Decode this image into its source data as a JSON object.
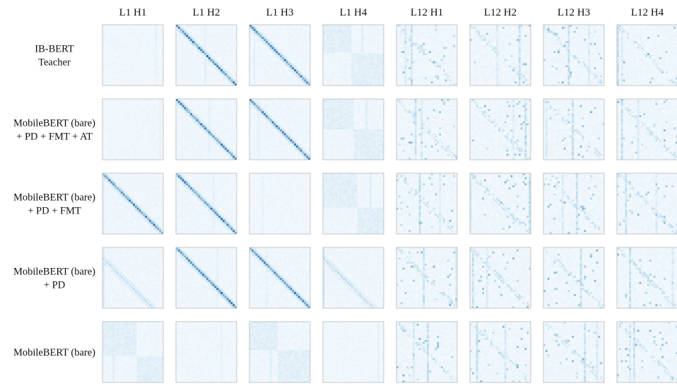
{
  "chart_data": {
    "type": "heatmap",
    "columns": [
      "L1 H1",
      "L1 H2",
      "L1 H3",
      "L1 H4",
      "L12 H1",
      "L12 H2",
      "L12 H3",
      "L12 H4"
    ],
    "rows": [
      {
        "label_lines": [
          "IB-BERT",
          "Teacher"
        ]
      },
      {
        "label_lines": [
          "MobileBERT (bare)",
          "+ PD + FMT + AT"
        ]
      },
      {
        "label_lines": [
          "MobileBERT (bare)",
          "+ PD + FMT"
        ]
      },
      {
        "label_lines": [
          "MobileBERT (bare)",
          "+ PD"
        ]
      },
      {
        "label_lines": [
          "MobileBERT (bare)"
        ]
      }
    ],
    "colormap": {
      "low": "#f7fbff",
      "mid": "#9ecae1",
      "high": "#08519c"
    },
    "frame_color": "#b9b9b9",
    "patterns": [
      [
        "uniform",
        "diag",
        "diag",
        "blocks",
        "sparse",
        "sparse",
        "sparse",
        "sparse"
      ],
      [
        "uniform",
        "diag",
        "diag",
        "blocks",
        "sparse",
        "sparse",
        "sparse",
        "sparse"
      ],
      [
        "diag",
        "diag",
        "uniform",
        "blocks",
        "sparse",
        "sparse",
        "sparse",
        "sparse"
      ],
      [
        "diag-faint",
        "diag",
        "diag",
        "diag-faint",
        "sparse",
        "sparse",
        "sparse",
        "sparse"
      ],
      [
        "blocks",
        "uniform",
        "blocks",
        "uniform",
        "sparse",
        "sparse",
        "sparse",
        "sparse"
      ]
    ]
  }
}
